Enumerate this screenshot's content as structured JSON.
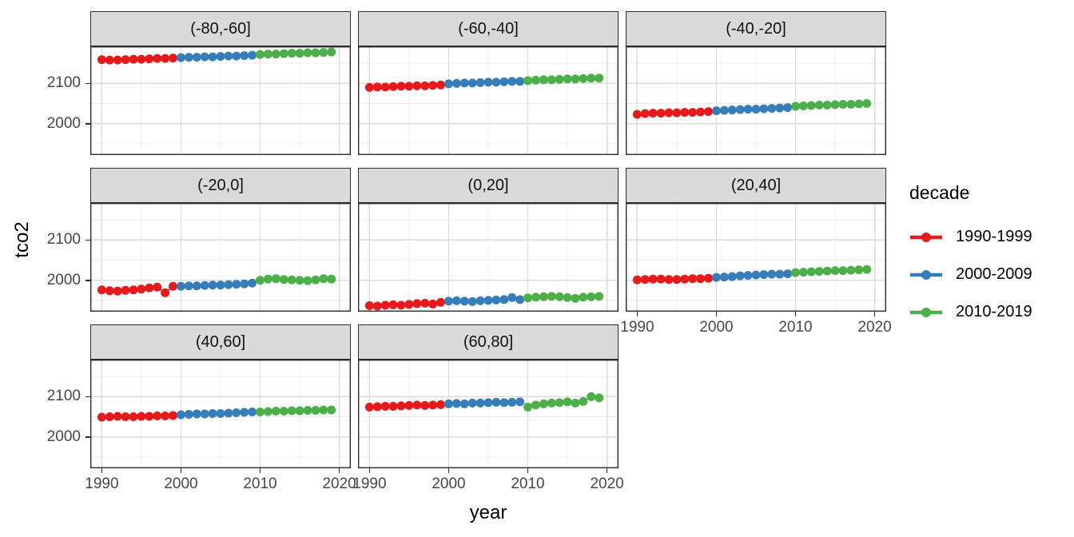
{
  "chart_data": {
    "type": "scatter",
    "title": "",
    "xlabel": "year",
    "ylabel": "tco2",
    "years": {
      "start": 1990,
      "end": 2019
    },
    "x_ticks": [
      1990,
      2000,
      2010,
      2020
    ],
    "x_minor_ticks": [
      1995,
      2005,
      2015
    ],
    "y_ticks": [
      2000,
      2100
    ],
    "y_minor_ticks": [
      1950,
      2050,
      2150
    ],
    "x_domain": [
      1988.55,
      2021.45
    ],
    "y_domain": [
      1922,
      2192
    ],
    "grid": true,
    "facet_rows": 3,
    "facet_cols": 3,
    "legend": {
      "title": "decade",
      "position": "right",
      "entries": [
        {
          "label": "1990-1999",
          "color": "#E41A1C",
          "start_year": 1990
        },
        {
          "label": "2000-2009",
          "color": "#377EB8",
          "start_year": 2000
        },
        {
          "label": "2010-2019",
          "color": "#4DAF4A",
          "start_year": 2010
        }
      ]
    },
    "facets": [
      {
        "label": "(-80,-60]",
        "row": 0,
        "col": 0,
        "series": {
          "1990-1999": [
            2159,
            2158,
            2158,
            2159,
            2160,
            2160,
            2161,
            2162,
            2162,
            2163
          ],
          "2000-2009": [
            2164,
            2165,
            2165,
            2166,
            2166,
            2167,
            2168,
            2168,
            2169,
            2170
          ],
          "2010-2019": [
            2172,
            2173,
            2173,
            2174,
            2175,
            2175,
            2176,
            2176,
            2177,
            2178
          ]
        }
      },
      {
        "label": "(-60,-40]",
        "row": 0,
        "col": 1,
        "series": {
          "1990-1999": [
            2090,
            2091,
            2091,
            2092,
            2093,
            2093,
            2094,
            2094,
            2095,
            2096
          ],
          "2000-2009": [
            2099,
            2100,
            2101,
            2101,
            2102,
            2103,
            2103,
            2104,
            2105,
            2105
          ],
          "2010-2019": [
            2107,
            2108,
            2109,
            2109,
            2110,
            2111,
            2111,
            2112,
            2113,
            2113
          ]
        }
      },
      {
        "label": "(-40,-20]",
        "row": 0,
        "col": 2,
        "series": {
          "1990-1999": [
            2023,
            2025,
            2026,
            2026,
            2027,
            2027,
            2028,
            2028,
            2029,
            2030
          ],
          "2000-2009": [
            2032,
            2033,
            2034,
            2035,
            2036,
            2036,
            2037,
            2038,
            2039,
            2040
          ],
          "2010-2019": [
            2043,
            2044,
            2045,
            2046,
            2046,
            2047,
            2048,
            2048,
            2049,
            2050
          ]
        }
      },
      {
        "label": "(-20,0]",
        "row": 1,
        "col": 0,
        "series": {
          "1990-1999": [
            1976,
            1974,
            1973,
            1975,
            1976,
            1978,
            1981,
            1983,
            1969,
            1985
          ],
          "2000-2009": [
            1985,
            1986,
            1986,
            1987,
            1988,
            1988,
            1989,
            1990,
            1991,
            1993
          ],
          "2010-2019": [
            2000,
            2003,
            2004,
            2002,
            2001,
            2000,
            1999,
            2001,
            2004,
            2003
          ]
        }
      },
      {
        "label": "(0,20]",
        "row": 1,
        "col": 1,
        "series": {
          "1990-1999": [
            1937,
            1936,
            1938,
            1939,
            1938,
            1940,
            1942,
            1943,
            1941,
            1945
          ],
          "2000-2009": [
            1948,
            1949,
            1948,
            1947,
            1949,
            1950,
            1951,
            1952,
            1957,
            1952
          ],
          "2010-2019": [
            1956,
            1958,
            1959,
            1960,
            1959,
            1957,
            1955,
            1958,
            1959,
            1960
          ]
        }
      },
      {
        "label": "(20,40]",
        "row": 1,
        "col": 2,
        "series": {
          "1990-1999": [
            2001,
            2002,
            2003,
            2003,
            2002,
            2002,
            2003,
            2004,
            2004,
            2005
          ],
          "2000-2009": [
            2007,
            2008,
            2009,
            2011,
            2012,
            2013,
            2014,
            2015,
            2015,
            2016
          ],
          "2010-2019": [
            2019,
            2020,
            2021,
            2022,
            2023,
            2024,
            2024,
            2025,
            2026,
            2027
          ]
        }
      },
      {
        "label": "(40,60]",
        "row": 2,
        "col": 0,
        "series": {
          "1990-1999": [
            2049,
            2050,
            2051,
            2050,
            2050,
            2051,
            2051,
            2052,
            2052,
            2053
          ],
          "2000-2009": [
            2055,
            2056,
            2057,
            2057,
            2058,
            2058,
            2059,
            2060,
            2061,
            2062
          ],
          "2010-2019": [
            2062,
            2063,
            2064,
            2064,
            2065,
            2065,
            2066,
            2066,
            2067,
            2067
          ]
        }
      },
      {
        "label": "(60,80]",
        "row": 2,
        "col": 1,
        "series": {
          "1990-1999": [
            2074,
            2075,
            2076,
            2076,
            2077,
            2078,
            2079,
            2078,
            2079,
            2080
          ],
          "2000-2009": [
            2082,
            2083,
            2082,
            2084,
            2084,
            2085,
            2086,
            2085,
            2086,
            2087
          ],
          "2010-2019": [
            2074,
            2079,
            2082,
            2084,
            2085,
            2087,
            2084,
            2088,
            2100,
            2097
          ]
        }
      }
    ],
    "theme": {
      "strip_background": "#DADADA",
      "panel_background": "#FFFFFF",
      "panel_border": "#2B2B2B",
      "grid_major": "#DCDCDC",
      "grid_minor": "#ECECEC",
      "tick_text": "#474747"
    }
  }
}
